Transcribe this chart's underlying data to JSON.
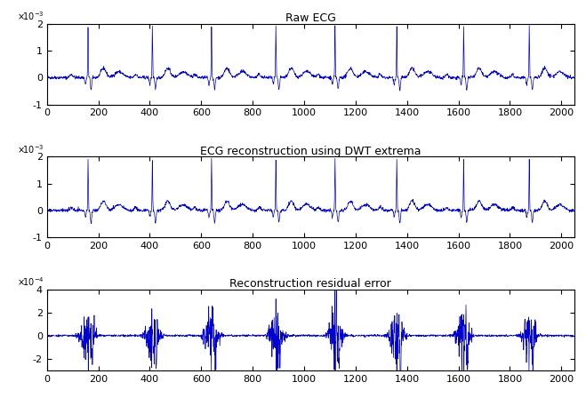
{
  "title1": "Raw ECG",
  "title2": "ECG reconstruction using DWT extrema",
  "title3": "Reconstruction residual error",
  "xlim": [
    0,
    2050
  ],
  "ylim1": [
    -0.001,
    0.002
  ],
  "ylim2": [
    -0.001,
    0.002
  ],
  "ylim3": [
    -0.0003,
    0.0004
  ],
  "yticks1": [
    -0.001,
    0,
    0.001,
    0.002
  ],
  "ytick_labels1": [
    "-1",
    "0",
    "1",
    "2"
  ],
  "yticks2": [
    -0.001,
    0,
    0.001,
    0.002
  ],
  "ytick_labels2": [
    "-1",
    "0",
    "1",
    "2"
  ],
  "yticks3": [
    -0.0002,
    0,
    0.0002,
    0.0004
  ],
  "ytick_labels3": [
    "-2",
    "0",
    "2",
    "4"
  ],
  "exp1": "-3",
  "exp2": "-3",
  "exp3": "-4",
  "xticks": [
    0,
    200,
    400,
    600,
    800,
    1000,
    1200,
    1400,
    1600,
    1800,
    2000
  ],
  "line_color": "#0000cc",
  "bg_color": "#ffffff",
  "title_fontsize": 9,
  "tick_fontsize": 8,
  "beat_locs": [
    160,
    390,
    430,
    635,
    870,
    910,
    1110,
    1340,
    1380,
    1600,
    1640,
    1855,
    1895
  ],
  "beat_locs_single": [
    160,
    410,
    640,
    890,
    1120,
    1360,
    1620,
    1875
  ]
}
